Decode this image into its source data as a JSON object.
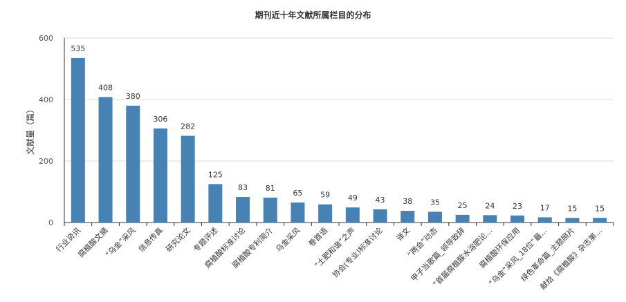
{
  "chart_data": {
    "type": "bar",
    "title": "期刊近十年文献所属栏目的分布",
    "ylabel": "文献量（篇）",
    "xlabel": "",
    "ylim": [
      0,
      600
    ],
    "yticks": [
      "0",
      "200",
      "400",
      "600"
    ],
    "grid": true,
    "bar_color": "#4682b4",
    "categories": [
      "行业资讯",
      "腐植酸文摘",
      "“乌金”采风",
      "信息传真",
      "研究论文",
      "专题评述",
      "腐植酸标准讨论",
      "腐植酸专利简介",
      "乌金采风",
      "卷首语",
      "“土肥和谐”之声",
      "协会(专业)标准讨论",
      "译文",
      "“两会”动态",
      "甲子当歌篇_领导致辞",
      "“首届腐植酸水溶肥论…",
      "腐植酸环保应用",
      "“乌金”采风_18位“最…",
      "绿色革命篇_主题照片",
      "献给《腐植酸》杂志第…"
    ],
    "values": [
      535,
      408,
      380,
      306,
      282,
      125,
      83,
      81,
      65,
      59,
      49,
      43,
      38,
      35,
      25,
      24,
      23,
      17,
      15,
      15
    ]
  }
}
